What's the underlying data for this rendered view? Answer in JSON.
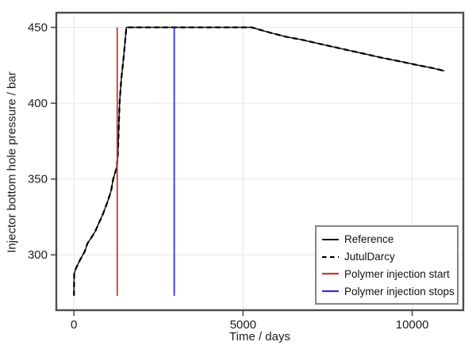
{
  "figure": {
    "background": "#ffffff",
    "spine_color": "#4d4d4d",
    "grid_color": "#e7e7e7",
    "text_color": "#1c1c1c",
    "legend_border_color": "#858585"
  },
  "chart_data": {
    "type": "line",
    "title": "",
    "xlabel": "Time / days",
    "ylabel": "Injector bottom hole pressure / bar",
    "xlim": [
      -520,
      11510
    ],
    "ylim": [
      263.5,
      459.7
    ],
    "xticks": [
      0,
      5000,
      10000
    ],
    "yticks": [
      300,
      350,
      400,
      450
    ],
    "grid": true,
    "legend_position": "lower-right",
    "series": [
      {
        "name": "Reference",
        "type": "line",
        "style": "solid",
        "color": "#141414",
        "width": 1.5,
        "points": [
          [
            0,
            273
          ],
          [
            8,
            287.5
          ],
          [
            60,
            291
          ],
          [
            164,
            296
          ],
          [
            321,
            302.3
          ],
          [
            400,
            307.5
          ],
          [
            556,
            312.8
          ],
          [
            640,
            316
          ],
          [
            710,
            319.7
          ],
          [
            790,
            323.5
          ],
          [
            868,
            327.5
          ],
          [
            985,
            334.5
          ],
          [
            1060,
            339.5
          ],
          [
            1100,
            342.4
          ],
          [
            1161,
            350
          ],
          [
            1259,
            357.2
          ],
          [
            1297,
            365
          ],
          [
            1349,
            400
          ],
          [
            1400,
            416
          ],
          [
            1455,
            427
          ],
          [
            1505,
            439
          ],
          [
            1550,
            450
          ],
          [
            2500,
            450
          ],
          [
            3500,
            450
          ],
          [
            4500,
            450
          ],
          [
            5250,
            450
          ],
          [
            5800,
            446.5
          ],
          [
            6300,
            443.7
          ],
          [
            6750,
            441.8
          ],
          [
            7300,
            439
          ],
          [
            7900,
            436
          ],
          [
            8500,
            433
          ],
          [
            9100,
            430
          ],
          [
            9700,
            427.3
          ],
          [
            10250,
            424.7
          ],
          [
            10600,
            423.2
          ],
          [
            10950,
            421.3
          ]
        ]
      },
      {
        "name": "JutulDarcy",
        "type": "line",
        "style": "dashed",
        "color": "#000000",
        "width": 2.3,
        "dash": "6.5 4.5",
        "points": [
          [
            0,
            273
          ],
          [
            8,
            287.5
          ],
          [
            60,
            291
          ],
          [
            164,
            296
          ],
          [
            321,
            302.3
          ],
          [
            400,
            307.5
          ],
          [
            556,
            312.8
          ],
          [
            640,
            316
          ],
          [
            710,
            319.7
          ],
          [
            790,
            323.5
          ],
          [
            868,
            327.5
          ],
          [
            985,
            334.5
          ],
          [
            1060,
            339.5
          ],
          [
            1100,
            342.4
          ],
          [
            1161,
            350
          ],
          [
            1259,
            357.2
          ],
          [
            1297,
            365
          ],
          [
            1349,
            400
          ],
          [
            1400,
            416
          ],
          [
            1455,
            427
          ],
          [
            1505,
            439
          ],
          [
            1550,
            450
          ],
          [
            2500,
            450
          ],
          [
            3500,
            450
          ],
          [
            4500,
            450
          ],
          [
            5250,
            450
          ],
          [
            5800,
            446.5
          ],
          [
            6300,
            443.7
          ],
          [
            6750,
            441.8
          ],
          [
            7300,
            439
          ],
          [
            7900,
            436
          ],
          [
            8500,
            433
          ],
          [
            9100,
            430
          ],
          [
            9700,
            427.3
          ],
          [
            10250,
            424.7
          ],
          [
            10600,
            423.2
          ],
          [
            10950,
            421.3
          ]
        ]
      },
      {
        "name": "Polymer injection start",
        "type": "vline",
        "style": "solid",
        "color": "#bf3b32",
        "width": 1.8,
        "x": 1280,
        "y_span": [
          273,
          450
        ]
      },
      {
        "name": "Polymer injection stops",
        "type": "vline",
        "style": "solid",
        "color": "#3333cc",
        "width": 1.8,
        "x": 2965,
        "y_span": [
          273,
          450
        ]
      }
    ]
  }
}
